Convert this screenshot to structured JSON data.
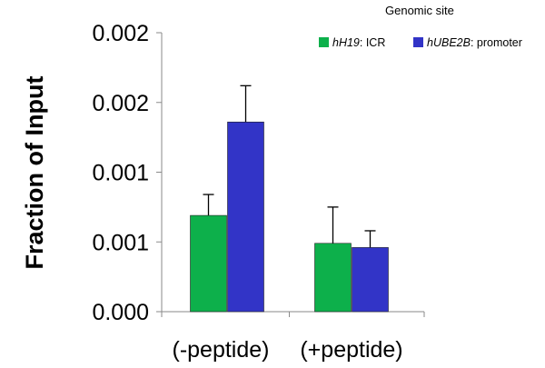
{
  "chart_data": {
    "type": "bar",
    "ylabel": "Fraction of  Input",
    "legend_title": "Genomic site",
    "legend_placement": "top-right",
    "categories": [
      "(-peptide)",
      "(+peptide)"
    ],
    "yticks": [
      "0.000",
      "0.001",
      "0.001",
      "0.002",
      "0.002"
    ],
    "ytick_values": [
      0,
      0.0005,
      0.001,
      0.0015,
      0.002
    ],
    "ylim": [
      0,
      0.002
    ],
    "grid": false,
    "series": [
      {
        "name_italic": "hH19",
        "name_rest": ": ICR",
        "color": "#0db04b",
        "values": [
          0.00069,
          0.00049
        ],
        "errors": [
          0.00015,
          0.00026
        ]
      },
      {
        "name_italic": "hUBE2B",
        "name_rest": ": promoter",
        "color": "#3234c7",
        "values": [
          0.00136,
          0.00046
        ],
        "errors": [
          0.00026,
          0.00012
        ]
      }
    ]
  }
}
